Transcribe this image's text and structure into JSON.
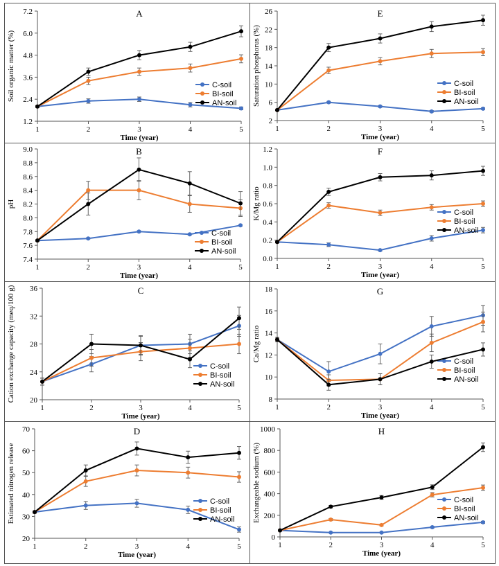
{
  "colors": {
    "C-soil": "#4472C4",
    "BI-soil": "#ED7D31",
    "AN-soil": "#000000"
  },
  "chart_data": [
    {
      "panel": "A",
      "type": "line",
      "title": "A",
      "xlabel": "Time (year)",
      "ylabel": "Soil organic matter (%)",
      "x": [
        1,
        2,
        3,
        4,
        5
      ],
      "x_ticks": [
        "1",
        "2",
        "3",
        "4",
        "5"
      ],
      "ylim": [
        1.2,
        7.2
      ],
      "y_ticks": [
        "1.2",
        "2.4",
        "3.6",
        "4.8",
        "6.0",
        "7.2"
      ],
      "grid": false,
      "legend_position": "right-lower",
      "series": [
        {
          "name": "C-soil",
          "values": [
            2.0,
            2.3,
            2.4,
            2.1,
            1.9
          ],
          "errors": [
            0.05,
            0.12,
            0.12,
            0.12,
            0.08
          ]
        },
        {
          "name": "BI-soil",
          "values": [
            2.0,
            3.4,
            3.9,
            4.1,
            4.6
          ],
          "errors": [
            0.05,
            0.2,
            0.2,
            0.22,
            0.22
          ]
        },
        {
          "name": "AN-soil",
          "values": [
            2.0,
            3.9,
            4.8,
            5.25,
            6.1
          ],
          "errors": [
            0.05,
            0.2,
            0.25,
            0.25,
            0.3
          ]
        }
      ]
    },
    {
      "panel": "E",
      "type": "line",
      "title": "E",
      "xlabel": "Time (year)",
      "ylabel": "Saturation phosphorus (%)",
      "x": [
        1,
        2,
        3,
        4,
        5
      ],
      "x_ticks": [
        "1",
        "2",
        "3",
        "4",
        "5"
      ],
      "ylim": [
        2,
        26
      ],
      "y_ticks": [
        "2",
        "6",
        "10",
        "14",
        "18",
        "22",
        "26"
      ],
      "grid": false,
      "legend_position": "right-lower",
      "series": [
        {
          "name": "C-soil",
          "values": [
            4.3,
            6.0,
            5.1,
            4.0,
            4.6
          ],
          "errors": [
            0.1,
            0.2,
            0.2,
            0.2,
            0.2
          ]
        },
        {
          "name": "BI-soil",
          "values": [
            4.3,
            13.0,
            15.0,
            16.7,
            17.0
          ],
          "errors": [
            0.1,
            0.7,
            0.8,
            0.9,
            0.8
          ]
        },
        {
          "name": "AN-soil",
          "values": [
            4.3,
            18.0,
            20.0,
            22.6,
            24.0
          ],
          "errors": [
            0.1,
            0.9,
            1.0,
            1.1,
            1.1
          ]
        }
      ]
    },
    {
      "panel": "B",
      "type": "line",
      "title": "B",
      "xlabel": "Time (year)",
      "ylabel": "pH",
      "x": [
        1,
        2,
        3,
        4,
        5
      ],
      "x_ticks": [
        "1",
        "2",
        "3",
        "4",
        "5"
      ],
      "ylim": [
        7.4,
        9.0
      ],
      "y_ticks": [
        "7.4",
        "7.6",
        "7.8",
        "8.0",
        "8.2",
        "8.4",
        "8.6",
        "8.8",
        "9.0"
      ],
      "grid": false,
      "legend_position": "right-lower",
      "series": [
        {
          "name": "C-soil",
          "values": [
            7.67,
            7.7,
            7.8,
            7.76,
            7.89
          ],
          "errors": [
            0.01,
            0.01,
            0.01,
            0.01,
            0.01
          ]
        },
        {
          "name": "BI-soil",
          "values": [
            7.67,
            8.4,
            8.4,
            8.2,
            8.14
          ],
          "errors": [
            0.01,
            0.13,
            0.14,
            0.12,
            0.12
          ]
        },
        {
          "name": "AN-soil",
          "values": [
            7.67,
            8.2,
            8.7,
            8.5,
            8.21
          ],
          "errors": [
            0.01,
            0.16,
            0.17,
            0.17,
            0.17
          ]
        }
      ]
    },
    {
      "panel": "F",
      "type": "line",
      "title": "F",
      "xlabel": "Time (year)",
      "ylabel": "K/Mg ratio",
      "x": [
        1,
        2,
        3,
        4,
        5
      ],
      "x_ticks": [
        "1",
        "2",
        "3",
        "4",
        "5"
      ],
      "ylim": [
        0,
        1.2
      ],
      "y_ticks": [
        "0.0",
        "0.2",
        "0.4",
        "0.6",
        "0.8",
        "1.0",
        "1.2"
      ],
      "grid": false,
      "legend_position": "right-lower",
      "series": [
        {
          "name": "C-soil",
          "values": [
            0.18,
            0.15,
            0.09,
            0.22,
            0.31
          ],
          "errors": [
            0.01,
            0.02,
            0.01,
            0.03,
            0.03
          ]
        },
        {
          "name": "BI-soil",
          "values": [
            0.18,
            0.58,
            0.5,
            0.56,
            0.6
          ],
          "errors": [
            0.01,
            0.03,
            0.03,
            0.03,
            0.03
          ]
        },
        {
          "name": "AN-soil",
          "values": [
            0.18,
            0.73,
            0.89,
            0.91,
            0.96
          ],
          "errors": [
            0.01,
            0.04,
            0.04,
            0.05,
            0.05
          ]
        }
      ]
    },
    {
      "panel": "C",
      "type": "line",
      "title": "C",
      "xlabel": "Time (year)",
      "ylabel": "Cation exchange capacity (meq/100 g)",
      "x": [
        1,
        2,
        3,
        4,
        5
      ],
      "x_ticks": [
        "1",
        "2",
        "3",
        "4",
        "5"
      ],
      "ylim": [
        20,
        36
      ],
      "y_ticks": [
        "20",
        "24",
        "28",
        "32",
        "36"
      ],
      "grid": false,
      "legend_position": "right-lower",
      "series": [
        {
          "name": "C-soil",
          "values": [
            22.6,
            25.1,
            27.8,
            28.0,
            30.6
          ],
          "errors": [
            0.5,
            1.1,
            1.3,
            1.4,
            1.5
          ]
        },
        {
          "name": "BI-soil",
          "values": [
            22.6,
            26.0,
            26.9,
            27.4,
            28.0
          ],
          "errors": [
            0.5,
            1.2,
            1.3,
            1.3,
            1.4
          ]
        },
        {
          "name": "AN-soil",
          "values": [
            22.6,
            28.0,
            27.8,
            25.8,
            31.7
          ],
          "errors": [
            0.5,
            1.4,
            1.4,
            1.2,
            1.6
          ]
        }
      ]
    },
    {
      "panel": "G",
      "type": "line",
      "title": "G",
      "xlabel": "Time (year)",
      "ylabel": "Ca/Mg ratio",
      "x": [
        1,
        2,
        3,
        4,
        5
      ],
      "x_ticks": [
        "1",
        "2",
        "3",
        "4",
        "5"
      ],
      "ylim": [
        8,
        18
      ],
      "y_ticks": [
        "8",
        "10",
        "12",
        "14",
        "16",
        "18"
      ],
      "grid": false,
      "legend_position": "right-lower",
      "series": [
        {
          "name": "C-soil",
          "values": [
            13.4,
            10.5,
            12.1,
            14.6,
            15.6
          ],
          "errors": [
            0.2,
            0.9,
            0.9,
            0.9,
            0.9
          ]
        },
        {
          "name": "BI-soil",
          "values": [
            13.4,
            9.7,
            9.8,
            13.1,
            15.0
          ],
          "errors": [
            0.2,
            0.5,
            0.5,
            0.8,
            0.9
          ]
        },
        {
          "name": "AN-soil",
          "values": [
            13.4,
            9.3,
            9.8,
            11.4,
            12.5
          ],
          "errors": [
            0.2,
            0.5,
            0.5,
            0.6,
            0.6
          ]
        }
      ]
    },
    {
      "panel": "D",
      "type": "line",
      "title": "D",
      "xlabel": "Time (year)",
      "ylabel": "Estimated nitrogen release",
      "x": [
        1,
        2,
        3,
        4,
        5
      ],
      "x_ticks": [
        "1",
        "2",
        "3",
        "4",
        "5"
      ],
      "ylim": [
        20,
        70
      ],
      "y_ticks": [
        "20",
        "30",
        "40",
        "50",
        "60",
        "70"
      ],
      "grid": false,
      "legend_position": "right-lower",
      "series": [
        {
          "name": "C-soil",
          "values": [
            32,
            35,
            36,
            33,
            24
          ],
          "errors": [
            0.5,
            1.8,
            1.8,
            1.7,
            1.2
          ]
        },
        {
          "name": "BI-soil",
          "values": [
            32,
            46,
            51,
            50,
            48
          ],
          "errors": [
            0.5,
            2.3,
            2.5,
            2.5,
            2.4
          ]
        },
        {
          "name": "AN-soil",
          "values": [
            32,
            51,
            61,
            57,
            59
          ],
          "errors": [
            0.5,
            2.5,
            3.0,
            2.8,
            2.9
          ]
        }
      ]
    },
    {
      "panel": "H",
      "type": "line",
      "title": "H",
      "xlabel": "Time (year)",
      "ylabel": "Exchangeable sodium (%)",
      "x": [
        1,
        2,
        3,
        4,
        5
      ],
      "x_ticks": [
        "1",
        "2",
        "3",
        "4",
        "5"
      ],
      "ylim": [
        0,
        1000
      ],
      "y_ticks": [
        "0",
        "200",
        "400",
        "600",
        "800",
        "1000"
      ],
      "grid": false,
      "legend_position": "right-lower",
      "series": [
        {
          "name": "C-soil",
          "values": [
            60,
            40,
            40,
            90,
            135
          ],
          "errors": [
            5,
            5,
            5,
            8,
            10
          ]
        },
        {
          "name": "BI-soil",
          "values": [
            60,
            160,
            110,
            390,
            455
          ],
          "errors": [
            5,
            10,
            8,
            20,
            25
          ]
        },
        {
          "name": "AN-soil",
          "values": [
            60,
            280,
            365,
            460,
            830
          ],
          "errors": [
            5,
            12,
            18,
            22,
            40
          ]
        }
      ]
    }
  ]
}
